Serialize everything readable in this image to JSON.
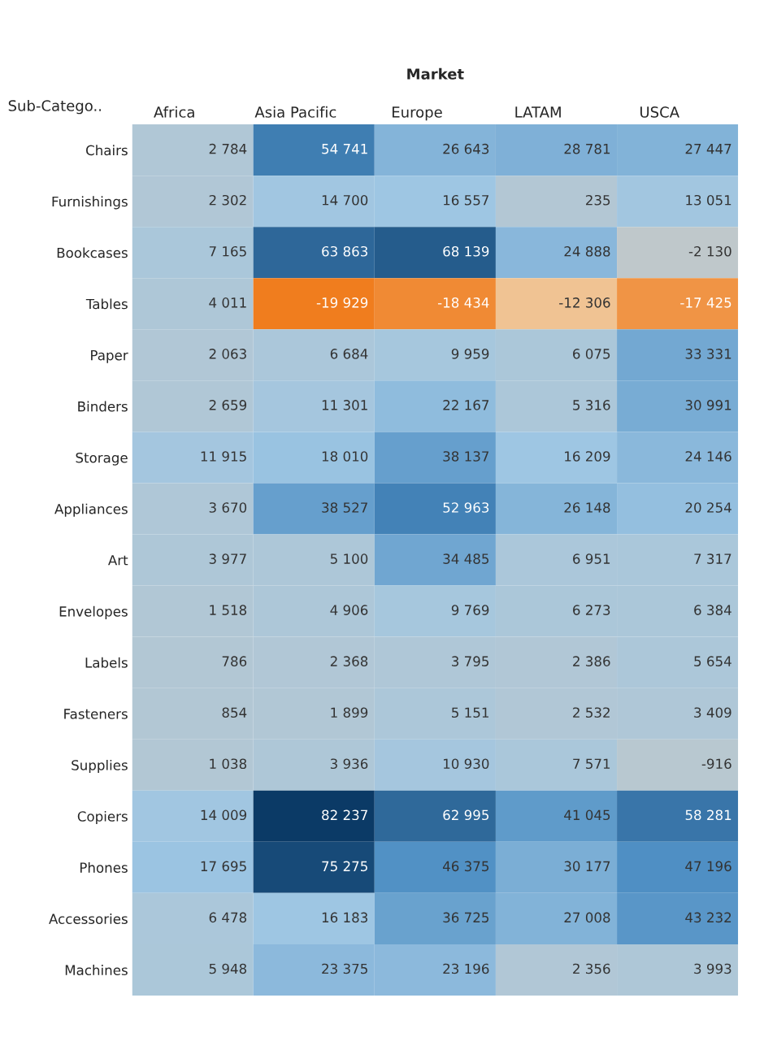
{
  "chart_data": {
    "type": "heatmap",
    "title": "Market",
    "ylabel": "Sub-Catego..",
    "categories": [
      "Africa",
      "Asia Pacific",
      "Europe",
      "LATAM",
      "USCA"
    ],
    "y_categories": [
      "Chairs",
      "Furnishings",
      "Bookcases",
      "Tables",
      "Paper",
      "Binders",
      "Storage",
      "Appliances",
      "Art",
      "Envelopes",
      "Labels",
      "Fasteners",
      "Supplies",
      "Copiers",
      "Phones",
      "Accessories",
      "Machines"
    ],
    "cells": [
      [
        2784,
        54741,
        26643,
        28781,
        27447
      ],
      [
        2302,
        14700,
        16557,
        235,
        13051
      ],
      [
        7165,
        63863,
        68139,
        24888,
        -2130
      ],
      [
        4011,
        -19929,
        -18434,
        -12306,
        -17425
      ],
      [
        2063,
        6684,
        9959,
        6075,
        33331
      ],
      [
        2659,
        11301,
        22167,
        5316,
        30991
      ],
      [
        11915,
        18010,
        38137,
        16209,
        24146
      ],
      [
        3670,
        38527,
        52963,
        26148,
        20254
      ],
      [
        3977,
        5100,
        34485,
        6951,
        7317
      ],
      [
        1518,
        4906,
        9769,
        6273,
        6384
      ],
      [
        786,
        2368,
        3795,
        2386,
        5654
      ],
      [
        854,
        1899,
        5151,
        2532,
        3409
      ],
      [
        1038,
        3936,
        10930,
        7571,
        -916
      ],
      [
        14009,
        82237,
        62995,
        41045,
        58281
      ],
      [
        17695,
        75275,
        46375,
        30177,
        47196
      ],
      [
        6478,
        16183,
        36725,
        27008,
        43232
      ],
      [
        5948,
        23375,
        23196,
        2356,
        3993
      ]
    ],
    "cell_labels": [
      [
        "2 784",
        "54 741",
        "26 643",
        "28 781",
        "27 447"
      ],
      [
        "2 302",
        "14 700",
        "16 557",
        "235",
        "13 051"
      ],
      [
        "7 165",
        "63 863",
        "68 139",
        "24 888",
        "-2 130"
      ],
      [
        "4 011",
        "-19 929",
        "-18 434",
        "-12 306",
        "-17 425"
      ],
      [
        "2 063",
        "6 684",
        "9 959",
        "6 075",
        "33 331"
      ],
      [
        "2 659",
        "11 301",
        "22 167",
        "5 316",
        "30 991"
      ],
      [
        "11 915",
        "18 010",
        "38 137",
        "16 209",
        "24 146"
      ],
      [
        "3 670",
        "38 527",
        "52 963",
        "26 148",
        "20 254"
      ],
      [
        "3 977",
        "5 100",
        "34 485",
        "6 951",
        "7 317"
      ],
      [
        "1 518",
        "4 906",
        "9 769",
        "6 273",
        "6 384"
      ],
      [
        "786",
        "2 368",
        "3 795",
        "2 386",
        "5 654"
      ],
      [
        "854",
        "1 899",
        "5 151",
        "2 532",
        "3 409"
      ],
      [
        "1 038",
        "3 936",
        "10 930",
        "7 571",
        "-916"
      ],
      [
        "14 009",
        "82 237",
        "62 995",
        "41 045",
        "58 281"
      ],
      [
        "17 695",
        "75 275",
        "46 375",
        "30 177",
        "47 196"
      ],
      [
        "6 478",
        "16 183",
        "36 725",
        "27 008",
        "43 232"
      ],
      [
        "5 948",
        "23 375",
        "23 196",
        "2 356",
        "3 993"
      ]
    ]
  }
}
